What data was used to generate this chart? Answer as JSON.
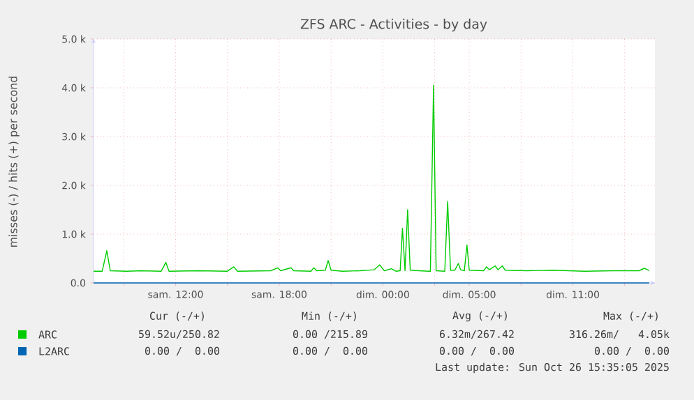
{
  "chart_data": {
    "type": "line",
    "title": "ZFS ARC - Activities - by day",
    "ylabel": "misses (-) / hits (+) per second",
    "xlim": [
      "2025-10-25T07:15",
      "2025-10-26T15:45"
    ],
    "ylim": [
      0,
      5000
    ],
    "xticks": [
      {
        "value": "2025-10-25T09:00",
        "label": null
      },
      {
        "value": "2025-10-25T12:00",
        "label": "sam. 12:00"
      },
      {
        "value": "2025-10-25T15:00",
        "label": null
      },
      {
        "value": "2025-10-25T18:00",
        "label": "sam. 18:00"
      },
      {
        "value": "2025-10-25T21:00",
        "label": null
      },
      {
        "value": "2025-10-26T00:00",
        "label": "dim. 00:00"
      },
      {
        "value": "2025-10-26T03:00",
        "label": null
      },
      {
        "value": "2025-10-26T05:00",
        "label": "dim. 05:00"
      },
      {
        "value": "2025-10-26T08:00",
        "label": null
      },
      {
        "value": "2025-10-26T11:00",
        "label": "dim. 11:00"
      },
      {
        "value": "2025-10-26T14:00",
        "label": null
      }
    ],
    "yticks": [
      {
        "value": 0,
        "label": "0.0"
      },
      {
        "value": 1000,
        "label": "1.0 k"
      },
      {
        "value": 2000,
        "label": "2.0 k"
      },
      {
        "value": 3000,
        "label": "3.0 k"
      },
      {
        "value": 4000,
        "label": "4.0 k"
      },
      {
        "value": 5000,
        "label": "5.0 k"
      }
    ],
    "grid": true,
    "legend": "bottom left",
    "series": [
      {
        "name": "ARC",
        "color": "#00cc00",
        "x": [
          "2025-10-25T07:15",
          "2025-10-25T07:45",
          "2025-10-25T08:01",
          "2025-10-25T08:13",
          "2025-10-25T09:10",
          "2025-10-25T10:00",
          "2025-10-25T11:10",
          "2025-10-25T11:26",
          "2025-10-25T11:37",
          "2025-10-25T13:20",
          "2025-10-25T15:00",
          "2025-10-25T15:22",
          "2025-10-25T15:35",
          "2025-10-25T17:30",
          "2025-10-25T17:55",
          "2025-10-25T18:05",
          "2025-10-25T18:41",
          "2025-10-25T18:50",
          "2025-10-25T19:50",
          "2025-10-25T20:00",
          "2025-10-25T20:10",
          "2025-10-25T20:40",
          "2025-10-25T20:50",
          "2025-10-25T21:00",
          "2025-10-25T21:40",
          "2025-10-25T22:40",
          "2025-10-25T23:30",
          "2025-10-25T23:49",
          "2025-10-26T00:05",
          "2025-10-26T00:30",
          "2025-10-26T00:45",
          "2025-10-26T01:00",
          "2025-10-26T01:08",
          "2025-10-26T01:17",
          "2025-10-26T01:26",
          "2025-10-26T01:35",
          "2025-10-26T02:05",
          "2025-10-26T02:40",
          "2025-10-26T02:45",
          "2025-10-26T02:56",
          "2025-10-26T03:05",
          "2025-10-26T03:35",
          "2025-10-26T03:45",
          "2025-10-26T03:55",
          "2025-10-26T04:10",
          "2025-10-26T04:22",
          "2025-10-26T04:30",
          "2025-10-26T04:43",
          "2025-10-26T04:52",
          "2025-10-26T05:00",
          "2025-10-26T05:50",
          "2025-10-26T06:00",
          "2025-10-26T06:10",
          "2025-10-26T06:30",
          "2025-10-26T06:40",
          "2025-10-26T06:55",
          "2025-10-26T07:05",
          "2025-10-26T08:20",
          "2025-10-26T09:50",
          "2025-10-26T11:40",
          "2025-10-26T13:20",
          "2025-10-26T14:50",
          "2025-10-26T15:08",
          "2025-10-26T15:20",
          "2025-10-26T15:25"
        ],
        "values": [
          240,
          240,
          660,
          250,
          240,
          250,
          240,
          420,
          240,
          250,
          240,
          330,
          240,
          250,
          310,
          250,
          310,
          250,
          240,
          310,
          250,
          260,
          460,
          260,
          240,
          250,
          270,
          370,
          250,
          290,
          240,
          250,
          1120,
          250,
          1500,
          260,
          250,
          240,
          240,
          4050,
          250,
          240,
          1670,
          260,
          260,
          400,
          270,
          250,
          780,
          260,
          250,
          330,
          270,
          350,
          270,
          350,
          260,
          250,
          260,
          240,
          250,
          250,
          300,
          270,
          250
        ]
      },
      {
        "name": "L2ARC",
        "color": "#0066b3",
        "x": [
          "2025-10-25T07:15",
          "2025-10-26T15:25"
        ],
        "values": [
          0,
          0
        ]
      }
    ],
    "annotations": [
      "Cur (-/+)",
      "Min (-/+)",
      "Avg (-/+)",
      "Max (-/+)",
      "59.52u/250.82",
      "0.00 /215.89",
      "6.32m/267.42",
      "316.26m/   4.05k",
      "0.00 /  0.00",
      "0.00 /  0.00",
      "0.00 /  0.00",
      "0.00 /  0.00",
      "Last update: Sun Oct 26 15:35:05 2025"
    ]
  }
}
